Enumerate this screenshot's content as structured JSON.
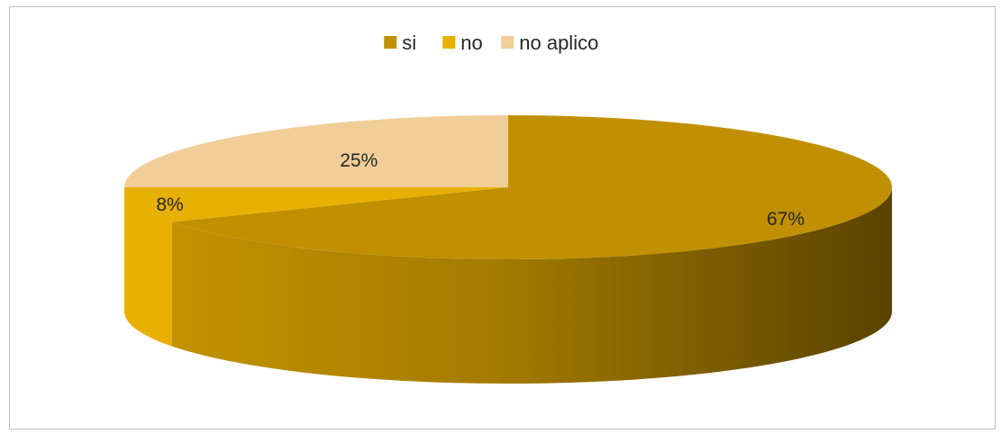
{
  "chart_data": {
    "type": "pie",
    "style": "3d",
    "title": "",
    "legend_position": "top",
    "slices": [
      {
        "name": "si",
        "value": 67,
        "label": "67%",
        "color": "#c09000"
      },
      {
        "name": "no",
        "value": 8,
        "label": "8%",
        "color": "#e8b000"
      },
      {
        "name": "no aplico",
        "value": 25,
        "label": "25%",
        "color": "#f1cd97"
      }
    ]
  }
}
